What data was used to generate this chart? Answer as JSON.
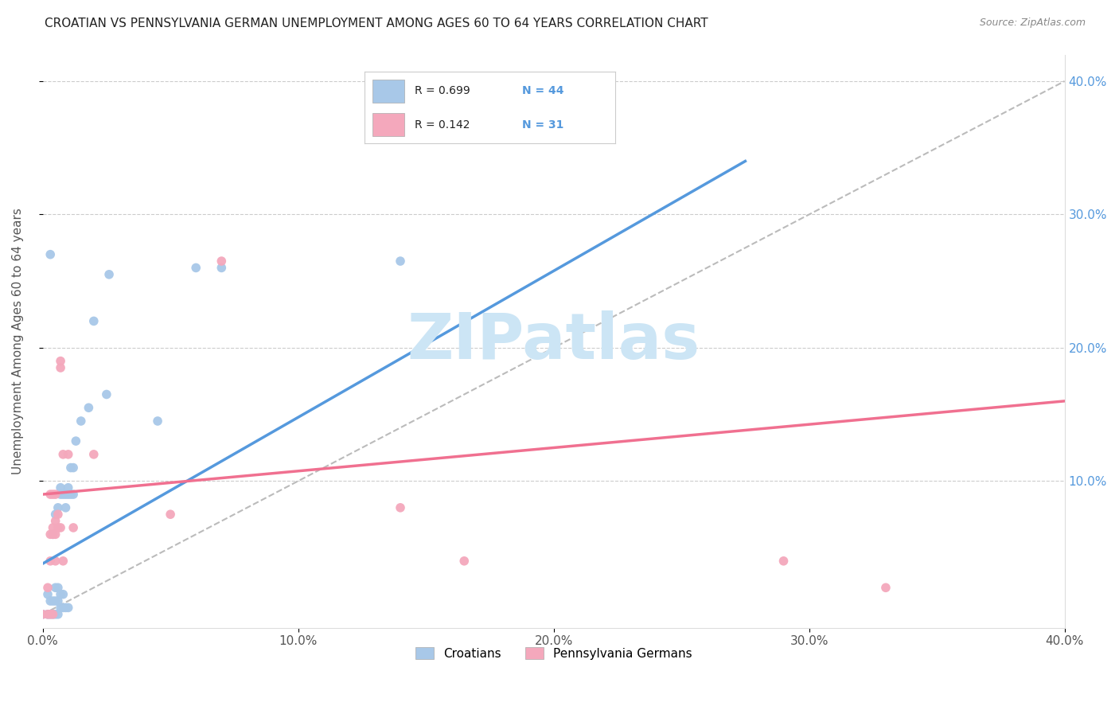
{
  "title": "CROATIAN VS PENNSYLVANIA GERMAN UNEMPLOYMENT AMONG AGES 60 TO 64 YEARS CORRELATION CHART",
  "source": "Source: ZipAtlas.com",
  "ylabel": "Unemployment Among Ages 60 to 64 years",
  "xlim": [
    0.0,
    0.4
  ],
  "ylim": [
    -0.01,
    0.42
  ],
  "xtick_labels": [
    "0.0%",
    "10.0%",
    "20.0%",
    "30.0%",
    "40.0%"
  ],
  "xtick_vals": [
    0.0,
    0.1,
    0.2,
    0.3,
    0.4
  ],
  "ytick_labels": [
    "10.0%",
    "20.0%",
    "30.0%",
    "40.0%"
  ],
  "ytick_vals": [
    0.1,
    0.2,
    0.3,
    0.4
  ],
  "right_ytick_labels": [
    "10.0%",
    "20.0%",
    "30.0%",
    "40.0%"
  ],
  "right_ytick_vals": [
    0.1,
    0.2,
    0.3,
    0.4
  ],
  "croatian_color": "#a8c8e8",
  "pa_german_color": "#f4a8bc",
  "croatian_line_color": "#5599dd",
  "pa_german_line_color": "#f07090",
  "diagonal_color": "#bbbbbb",
  "r_croatian": 0.699,
  "n_croatian": 44,
  "r_pa_german": 0.142,
  "n_pa_german": 31,
  "watermark": "ZIPatlas",
  "watermark_color": "#cce5f5",
  "croatian_scatter": [
    [
      0.0,
      0.0
    ],
    [
      0.002,
      0.0
    ],
    [
      0.002,
      0.015
    ],
    [
      0.003,
      0.0
    ],
    [
      0.003,
      0.01
    ],
    [
      0.004,
      0.0
    ],
    [
      0.004,
      0.01
    ],
    [
      0.004,
      0.06
    ],
    [
      0.005,
      0.0
    ],
    [
      0.005,
      0.01
    ],
    [
      0.005,
      0.02
    ],
    [
      0.005,
      0.075
    ],
    [
      0.006,
      0.0
    ],
    [
      0.006,
      0.01
    ],
    [
      0.006,
      0.02
    ],
    [
      0.006,
      0.08
    ],
    [
      0.007,
      0.005
    ],
    [
      0.007,
      0.015
    ],
    [
      0.007,
      0.09
    ],
    [
      0.007,
      0.095
    ],
    [
      0.008,
      0.005
    ],
    [
      0.008,
      0.015
    ],
    [
      0.008,
      0.09
    ],
    [
      0.009,
      0.005
    ],
    [
      0.009,
      0.08
    ],
    [
      0.009,
      0.09
    ],
    [
      0.01,
      0.005
    ],
    [
      0.01,
      0.09
    ],
    [
      0.01,
      0.095
    ],
    [
      0.011,
      0.09
    ],
    [
      0.011,
      0.11
    ],
    [
      0.012,
      0.09
    ],
    [
      0.012,
      0.11
    ],
    [
      0.013,
      0.13
    ],
    [
      0.015,
      0.145
    ],
    [
      0.018,
      0.155
    ],
    [
      0.02,
      0.22
    ],
    [
      0.025,
      0.165
    ],
    [
      0.026,
      0.255
    ],
    [
      0.045,
      0.145
    ],
    [
      0.06,
      0.26
    ],
    [
      0.07,
      0.26
    ],
    [
      0.003,
      0.27
    ],
    [
      0.14,
      0.265
    ]
  ],
  "pa_german_scatter": [
    [
      0.0,
      0.0
    ],
    [
      0.002,
      0.0
    ],
    [
      0.002,
      0.02
    ],
    [
      0.003,
      0.0
    ],
    [
      0.003,
      0.04
    ],
    [
      0.003,
      0.06
    ],
    [
      0.003,
      0.09
    ],
    [
      0.004,
      0.0
    ],
    [
      0.004,
      0.06
    ],
    [
      0.004,
      0.065
    ],
    [
      0.004,
      0.09
    ],
    [
      0.005,
      0.04
    ],
    [
      0.005,
      0.06
    ],
    [
      0.005,
      0.07
    ],
    [
      0.005,
      0.09
    ],
    [
      0.006,
      0.065
    ],
    [
      0.006,
      0.075
    ],
    [
      0.007,
      0.065
    ],
    [
      0.007,
      0.185
    ],
    [
      0.007,
      0.19
    ],
    [
      0.008,
      0.04
    ],
    [
      0.008,
      0.12
    ],
    [
      0.01,
      0.12
    ],
    [
      0.012,
      0.065
    ],
    [
      0.02,
      0.12
    ],
    [
      0.05,
      0.075
    ],
    [
      0.07,
      0.265
    ],
    [
      0.14,
      0.08
    ],
    [
      0.165,
      0.04
    ],
    [
      0.29,
      0.04
    ],
    [
      0.33,
      0.02
    ]
  ],
  "croatian_trendline": [
    [
      0.0,
      0.038
    ],
    [
      0.275,
      0.34
    ]
  ],
  "pa_german_trendline": [
    [
      0.0,
      0.09
    ],
    [
      0.4,
      0.16
    ]
  ],
  "diagonal_line": [
    [
      0.0,
      0.0
    ],
    [
      0.4,
      0.4
    ]
  ]
}
